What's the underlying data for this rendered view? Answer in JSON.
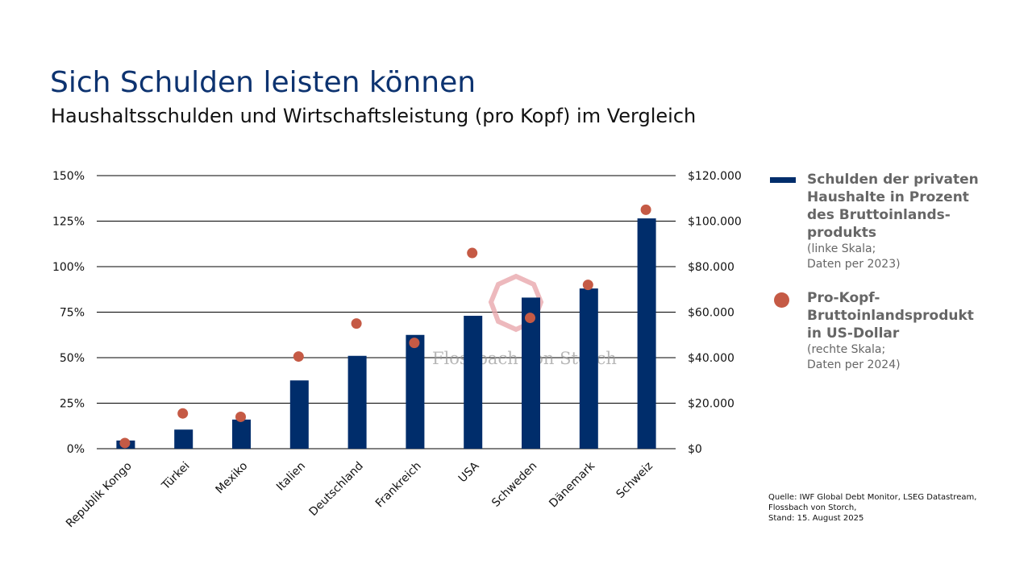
{
  "header": {
    "title": "Sich Schulden leisten können",
    "subtitle": "Haushaltsschulden und Wirtschaftsleistung (pro Kopf) im Vergleich"
  },
  "chart_data": {
    "type": "bar+scatter",
    "categories": [
      "Republik Kongo",
      "Türkei",
      "Mexiko",
      "Italien",
      "Deutschland",
      "Frankreich",
      "USA",
      "Schweden",
      "Dänemark",
      "Schweiz"
    ],
    "series": [
      {
        "name": "Schulden der privaten Haushalte in Prozent des Bruttoinlandsprodukts",
        "type": "bar",
        "axis": "left",
        "color": "#002d6b",
        "values": [
          4.5,
          10.5,
          16,
          37.5,
          51,
          62.5,
          73,
          83,
          88,
          126.5
        ]
      },
      {
        "name": "Pro-Kopf-Bruttoinlandsprodukt in US-Dollar",
        "type": "scatter",
        "axis": "right",
        "color": "#c55a45",
        "values": [
          2500,
          15500,
          14000,
          40500,
          55000,
          46500,
          86000,
          57500,
          72000,
          105000
        ]
      }
    ],
    "left_axis": {
      "ylim": [
        0,
        150
      ],
      "ticks": [
        "0%",
        "25%",
        "50%",
        "75%",
        "100%",
        "125%",
        "150%"
      ]
    },
    "right_axis": {
      "ylim": [
        0,
        120000
      ],
      "ticks": [
        "$0",
        "$20.000",
        "$40.000",
        "$60.000",
        "$80.000",
        "$100.000",
        "$120.000"
      ]
    },
    "grid": true,
    "legend_position": "right"
  },
  "legend": [
    {
      "main": "Schulden der privaten Haushalte in Prozent des Bruttoinlands-produkts",
      "sub1": "(linke Skala;",
      "sub2": "Daten per 2023)"
    },
    {
      "main": "Pro-Kopf-Bruttoinlandsprodukt in US-Dollar",
      "sub1": "(rechte Skala;",
      "sub2": "Daten per 2024)"
    }
  ],
  "watermark": "Flossbach von Storch",
  "source": {
    "line1": "Quelle: IWF Global Debt Monitor, LSEG Datastream,",
    "line2": "Flossbach von Storch,",
    "line3": "Stand: 15. August 2025"
  }
}
